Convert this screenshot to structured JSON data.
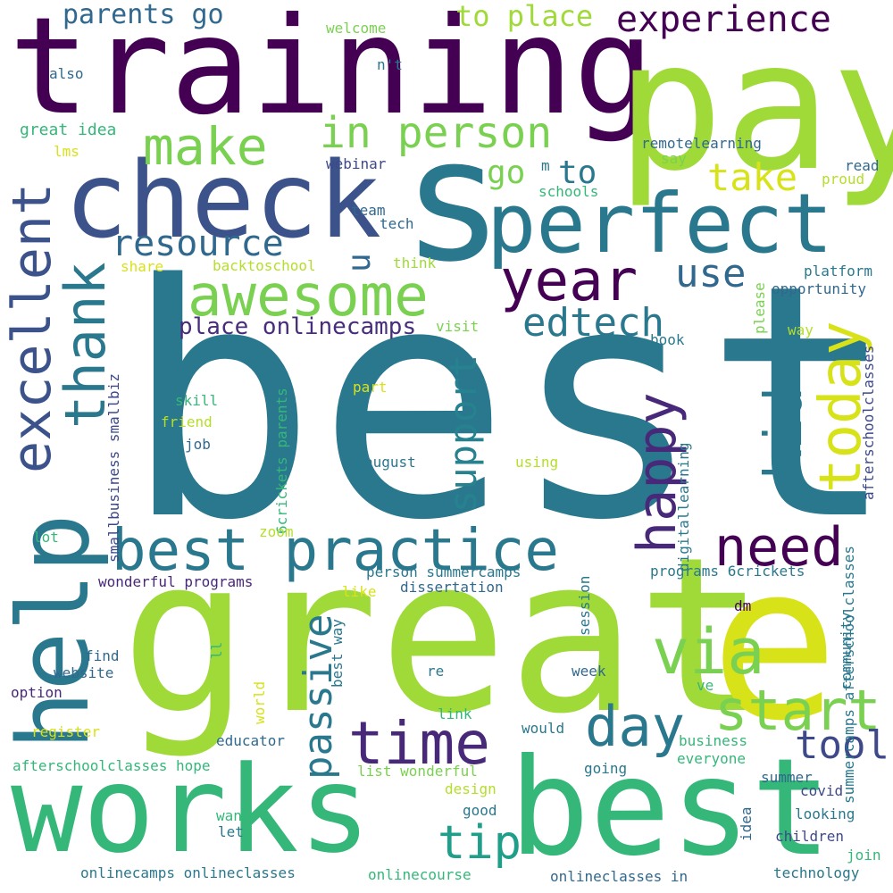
{
  "words": [
    {
      "id": "best-big",
      "text": "best",
      "color": "#2a788e",
      "v": false
    },
    {
      "id": "great",
      "text": "great",
      "color": "#a0da39",
      "v": false
    },
    {
      "id": "training",
      "text": "training",
      "color": "#440154",
      "v": false
    },
    {
      "id": "pay",
      "text": "pay",
      "color": "#a0da39",
      "v": false
    },
    {
      "id": "s",
      "text": "s",
      "color": "#2a788e",
      "v": false
    },
    {
      "id": "check",
      "text": "check",
      "color": "#3b528b",
      "v": false
    },
    {
      "id": "perfect",
      "text": "perfect",
      "color": "#2a788e",
      "v": false
    },
    {
      "id": "works",
      "text": "works",
      "color": "#35b779",
      "v": false
    },
    {
      "id": "best-bottom",
      "text": "best",
      "color": "#35b779",
      "v": false
    },
    {
      "id": "e",
      "text": "e",
      "color": "#d8e219",
      "v": false
    },
    {
      "id": "help",
      "text": "help",
      "color": "#2a788e",
      "v": true
    },
    {
      "id": "excellent",
      "text": "excellent",
      "color": "#3b528b",
      "v": true
    },
    {
      "id": "thank",
      "text": "thank",
      "color": "#2a788e",
      "v": true
    },
    {
      "id": "awesome",
      "text": "awesome",
      "color": "#7ad151",
      "v": false
    },
    {
      "id": "make",
      "text": "make",
      "color": "#7ad151",
      "v": false
    },
    {
      "id": "in-person",
      "text": "in person",
      "color": "#7ad151",
      "v": false
    },
    {
      "id": "year",
      "text": "year",
      "color": "#440154",
      "v": false
    },
    {
      "id": "resource",
      "text": "resource",
      "color": "#31688e",
      "v": false
    },
    {
      "id": "best-practice",
      "text": "best practice",
      "color": "#2a788e",
      "v": false
    },
    {
      "id": "need",
      "text": "need",
      "color": "#440154",
      "v": false
    },
    {
      "id": "time",
      "text": "time",
      "color": "#482878",
      "v": false
    },
    {
      "id": "day",
      "text": "day",
      "color": "#2a788e",
      "v": false
    },
    {
      "id": "via",
      "text": "via",
      "color": "#7ad151",
      "v": false
    },
    {
      "id": "start",
      "text": "start",
      "color": "#7ad151",
      "v": false
    },
    {
      "id": "tool",
      "text": "tool",
      "color": "#3e4989",
      "v": false
    },
    {
      "id": "tip",
      "text": "tip",
      "color": "#1f9e89",
      "v": false
    },
    {
      "id": "today",
      "text": "today",
      "color": "#d8e219",
      "v": true
    },
    {
      "id": "kid",
      "text": "kid",
      "color": "#2a788e",
      "v": true
    },
    {
      "id": "happy",
      "text": "happy",
      "color": "#482878",
      "v": true
    },
    {
      "id": "passive",
      "text": "passive",
      "color": "#2a788e",
      "v": true
    },
    {
      "id": "support",
      "text": "support",
      "color": "#26828e",
      "v": true
    },
    {
      "id": "edtech",
      "text": "edtech",
      "color": "#2a788e",
      "v": false
    },
    {
      "id": "use",
      "text": "use",
      "color": "#31688e",
      "v": false
    },
    {
      "id": "u",
      "text": "u",
      "color": "#31688e",
      "v": true
    },
    {
      "id": "take",
      "text": "take",
      "color": "#d8e219",
      "v": false
    },
    {
      "id": "go",
      "text": "go",
      "color": "#7ad151",
      "v": false
    },
    {
      "id": "to",
      "text": "to",
      "color": "#2a788e",
      "v": false
    },
    {
      "id": "experience",
      "text": "experience",
      "color": "#440154",
      "v": false
    },
    {
      "id": "to-place",
      "text": "to place",
      "color": "#a0da39",
      "v": false
    },
    {
      "id": "parents-go",
      "text": "parents go",
      "color": "#31688e",
      "v": false
    },
    {
      "id": "place-onlinecamps",
      "text": "place onlinecamps",
      "color": "#472d7b",
      "v": false
    },
    {
      "id": "welcome",
      "text": "welcome",
      "color": "#7ad151",
      "v": false
    },
    {
      "id": "nt",
      "text": "n't",
      "color": "#2a788e",
      "v": false
    },
    {
      "id": "also",
      "text": "also",
      "color": "#31688e",
      "v": false
    },
    {
      "id": "great-idea",
      "text": "great idea",
      "color": "#35b779",
      "v": false
    },
    {
      "id": "lms",
      "text": "lms",
      "color": "#d8e219",
      "v": false
    },
    {
      "id": "webinar",
      "text": "webinar",
      "color": "#3e4989",
      "v": false
    },
    {
      "id": "remotelearning",
      "text": "remotelearning",
      "color": "#31688e",
      "v": false
    },
    {
      "id": "say",
      "text": "say",
      "color": "#7ad151",
      "v": false
    },
    {
      "id": "read",
      "text": "read",
      "color": "#31688e",
      "v": false
    },
    {
      "id": "proud",
      "text": "proud",
      "color": "#b5de2b",
      "v": false
    },
    {
      "id": "m",
      "text": "m",
      "color": "#2a788e",
      "v": false
    },
    {
      "id": "schools",
      "text": "schools",
      "color": "#35b779",
      "v": false
    },
    {
      "id": "team",
      "text": "team",
      "color": "#31688e",
      "v": false
    },
    {
      "id": "tech",
      "text": "tech",
      "color": "#31688e",
      "v": false
    },
    {
      "id": "share",
      "text": "share",
      "color": "#d8e219",
      "v": false
    },
    {
      "id": "backtoschool",
      "text": "backtoschool",
      "color": "#b5de2b",
      "v": false
    },
    {
      "id": "think",
      "text": "think",
      "color": "#a0da39",
      "v": false
    },
    {
      "id": "platform",
      "text": "platform",
      "color": "#2a788e",
      "v": false
    },
    {
      "id": "opportunity",
      "text": "opportunity",
      "color": "#31688e",
      "v": false
    },
    {
      "id": "please",
      "text": "please",
      "color": "#7ad151",
      "v": true
    },
    {
      "id": "way",
      "text": "way",
      "color": "#b5de2b",
      "v": false
    },
    {
      "id": "visit",
      "text": "visit",
      "color": "#7ad151",
      "v": false
    },
    {
      "id": "book",
      "text": "book",
      "color": "#2a788e",
      "v": false
    },
    {
      "id": "afterschoolclasses",
      "text": "afterschoolclasses",
      "color": "#3e4989",
      "v": true
    },
    {
      "id": "smallbusiness-smallbiz",
      "text": "smallbusiness smallbiz",
      "color": "#3e4989",
      "v": true
    },
    {
      "id": "6crickets-parents",
      "text": "6crickets parents",
      "color": "#35b779",
      "v": true
    },
    {
      "id": "skill",
      "text": "skill",
      "color": "#35b779",
      "v": false
    },
    {
      "id": "part",
      "text": "part",
      "color": "#d8e219",
      "v": false
    },
    {
      "id": "friend",
      "text": "friend",
      "color": "#b5de2b",
      "v": false
    },
    {
      "id": "job",
      "text": "job",
      "color": "#31688e",
      "v": false
    },
    {
      "id": "august",
      "text": "august",
      "color": "#2a788e",
      "v": false
    },
    {
      "id": "using",
      "text": "using",
      "color": "#b5de2b",
      "v": false
    },
    {
      "id": "digitallearning",
      "text": "digitallearning",
      "color": "#2a788e",
      "v": true
    },
    {
      "id": "summercamps-afterschoolclasses",
      "text": "summercamps afterschoolclasses",
      "color": "#2a788e",
      "v": true
    },
    {
      "id": "lot",
      "text": "lot",
      "color": "#35b779",
      "v": false
    },
    {
      "id": "zoom",
      "text": "zoom",
      "color": "#b5de2b",
      "v": false
    },
    {
      "id": "person-summercamps",
      "text": "person summercamps",
      "color": "#2a788e",
      "v": false
    },
    {
      "id": "programs-6crickets",
      "text": "programs 6crickets",
      "color": "#2a788e",
      "v": false
    },
    {
      "id": "wonderful-programs",
      "text": "wonderful programs",
      "color": "#482878",
      "v": false
    },
    {
      "id": "dissertation",
      "text": "dissertation",
      "color": "#31688e",
      "v": false
    },
    {
      "id": "like",
      "text": "like",
      "color": "#d8e219",
      "v": false
    },
    {
      "id": "session",
      "text": "session",
      "color": "#2a788e",
      "v": true
    },
    {
      "id": "dm",
      "text": "dm",
      "color": "#440154",
      "v": false
    },
    {
      "id": "find",
      "text": "find",
      "color": "#31688e",
      "v": false
    },
    {
      "id": "ll",
      "text": "ll",
      "color": "#35b779",
      "v": true
    },
    {
      "id": "website",
      "text": "website",
      "color": "#31688e",
      "v": false
    },
    {
      "id": "best-way",
      "text": "best way",
      "color": "#2a788e",
      "v": true
    },
    {
      "id": "re",
      "text": "re",
      "color": "#2a788e",
      "v": false
    },
    {
      "id": "week",
      "text": "week",
      "color": "#31688e",
      "v": false
    },
    {
      "id": "community",
      "text": "community",
      "color": "#2a788e",
      "v": true
    },
    {
      "id": "ve",
      "text": "ve",
      "color": "#35b779",
      "v": false
    },
    {
      "id": "world",
      "text": "world",
      "color": "#d8e219",
      "v": true
    },
    {
      "id": "option",
      "text": "option",
      "color": "#482878",
      "v": false
    },
    {
      "id": "register",
      "text": "register",
      "color": "#d8e219",
      "v": false
    },
    {
      "id": "link",
      "text": "link",
      "color": "#35b779",
      "v": false
    },
    {
      "id": "would",
      "text": "would",
      "color": "#2a788e",
      "v": false
    },
    {
      "id": "educator",
      "text": "educator",
      "color": "#31688e",
      "v": false
    },
    {
      "id": "business",
      "text": "business",
      "color": "#35b779",
      "v": false
    },
    {
      "id": "afterschoolclasses-hope",
      "text": "afterschoolclasses hope",
      "color": "#35b779",
      "v": false
    },
    {
      "id": "everyone",
      "text": "everyone",
      "color": "#35b779",
      "v": false
    },
    {
      "id": "list-wonderful",
      "text": "list wonderful",
      "color": "#7ad151",
      "v": false
    },
    {
      "id": "going",
      "text": "going",
      "color": "#2a788e",
      "v": false
    },
    {
      "id": "summer",
      "text": "summer",
      "color": "#31688e",
      "v": false
    },
    {
      "id": "covid",
      "text": "covid",
      "color": "#3e4989",
      "v": false
    },
    {
      "id": "design",
      "text": "design",
      "color": "#b5de2b",
      "v": false
    },
    {
      "id": "good",
      "text": "good",
      "color": "#2a788e",
      "v": false
    },
    {
      "id": "want",
      "text": "want",
      "color": "#35b779",
      "v": false
    },
    {
      "id": "idea",
      "text": "idea",
      "color": "#31688e",
      "v": true
    },
    {
      "id": "looking",
      "text": "looking",
      "color": "#2a788e",
      "v": false
    },
    {
      "id": "let",
      "text": "let",
      "color": "#2a788e",
      "v": false
    },
    {
      "id": "children",
      "text": "children",
      "color": "#3e4989",
      "v": false
    },
    {
      "id": "join",
      "text": "join",
      "color": "#35b779",
      "v": false
    },
    {
      "id": "onlinecamps-onlineclasses",
      "text": "onlinecamps onlineclasses",
      "color": "#2a788e",
      "v": false
    },
    {
      "id": "onlinecourse",
      "text": "onlinecourse",
      "color": "#35b779",
      "v": false
    },
    {
      "id": "onlineclasses-in",
      "text": "onlineclasses in",
      "color": "#31688e",
      "v": false
    },
    {
      "id": "technology",
      "text": "technology",
      "color": "#2a788e",
      "v": false
    }
  ]
}
